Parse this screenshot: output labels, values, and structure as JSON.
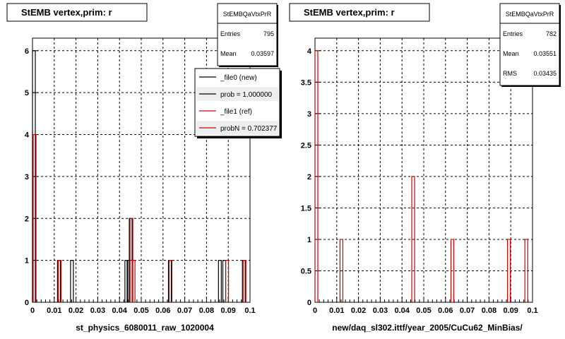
{
  "colors": {
    "new": "#000000",
    "ref": "#cc0000",
    "grid": "#000000",
    "frame": "#000000"
  },
  "footer_text": "",
  "chart_data": [
    {
      "type": "bar",
      "title": "StEMB  vertex,prim: r",
      "xlabel": "st_physics_6080011_raw_1020004",
      "ylabel": "",
      "xlim": [
        0,
        0.1
      ],
      "ylim": [
        0,
        6.3
      ],
      "xticks": [
        "0",
        "0.01",
        "0.02",
        "0.03",
        "0.04",
        "0.05",
        "0.06",
        "0.07",
        "0.08",
        "0.09",
        "0.1"
      ],
      "yticks": [
        "0",
        "1",
        "2",
        "3",
        "4",
        "5",
        "6"
      ],
      "grid": true,
      "stats": {
        "name": "StEMBQaVtxPrR",
        "entries_label": "Entries",
        "entries": "795",
        "mean_label": "Mean",
        "mean": "0.03597"
      },
      "legend": {
        "position": "top-right",
        "entries": [
          {
            "label": "_file0 (new)",
            "color": "#000000"
          },
          {
            "label": "prob = 1.000000",
            "color": "#000000"
          },
          {
            "label": "_file1 (ref)",
            "color": "#cc0000"
          },
          {
            "label": "probN = 0.702377",
            "color": "#cc0000"
          }
        ]
      },
      "series": [
        {
          "name": "_file0 (new)",
          "color": "#000000",
          "bins": [
            {
              "x": 0.0,
              "y": 6
            },
            {
              "x": 0.0115,
              "y": 1
            },
            {
              "x": 0.0175,
              "y": 1
            },
            {
              "x": 0.0425,
              "y": 1
            },
            {
              "x": 0.0445,
              "y": 2
            },
            {
              "x": 0.0435,
              "y": 1
            },
            {
              "x": 0.0625,
              "y": 1
            },
            {
              "x": 0.0855,
              "y": 1
            },
            {
              "x": 0.0875,
              "y": 1
            },
            {
              "x": 0.0965,
              "y": 1
            }
          ]
        },
        {
          "name": "_file1 (ref)",
          "color": "#cc0000",
          "bins": [
            {
              "x": 0.0,
              "y": 4
            },
            {
              "x": 0.0115,
              "y": 1
            },
            {
              "x": 0.0445,
              "y": 2
            },
            {
              "x": 0.0455,
              "y": 1
            },
            {
              "x": 0.0625,
              "y": 1
            },
            {
              "x": 0.0885,
              "y": 1
            },
            {
              "x": 0.0965,
              "y": 1
            }
          ]
        }
      ]
    },
    {
      "type": "bar",
      "title": "StEMB  vertex,prim: r",
      "xlabel": "new/daq_sl302.ittf/year_2005/CuCu62_MinBias/",
      "ylabel": "",
      "xlim": [
        0,
        0.1
      ],
      "ylim": [
        0,
        4.2
      ],
      "xticks": [
        "0",
        "0.01",
        "0.02",
        "0.03",
        "0.04",
        "0.05",
        "0.06",
        "0.07",
        "0.08",
        "0.09",
        "0.1"
      ],
      "yticks": [
        "0",
        "0.5",
        "1",
        "1.5",
        "2",
        "2.5",
        "3",
        "3.5",
        "4"
      ],
      "grid": true,
      "stats": {
        "name": "StEMBQaVtxPrR",
        "entries_label": "Entries",
        "entries": "782",
        "mean_label": "Mean",
        "mean": "0.03551",
        "rms_label": "RMS",
        "rms": "0.03435"
      },
      "legend": null,
      "series": [
        {
          "name": "",
          "color": "#cc0000",
          "bins": [
            {
              "x": 0.0,
              "y": 4
            },
            {
              "x": 0.0115,
              "y": 1
            },
            {
              "x": 0.0445,
              "y": 2
            },
            {
              "x": 0.0625,
              "y": 1
            },
            {
              "x": 0.0885,
              "y": 1
            },
            {
              "x": 0.0965,
              "y": 1
            }
          ]
        }
      ]
    }
  ]
}
